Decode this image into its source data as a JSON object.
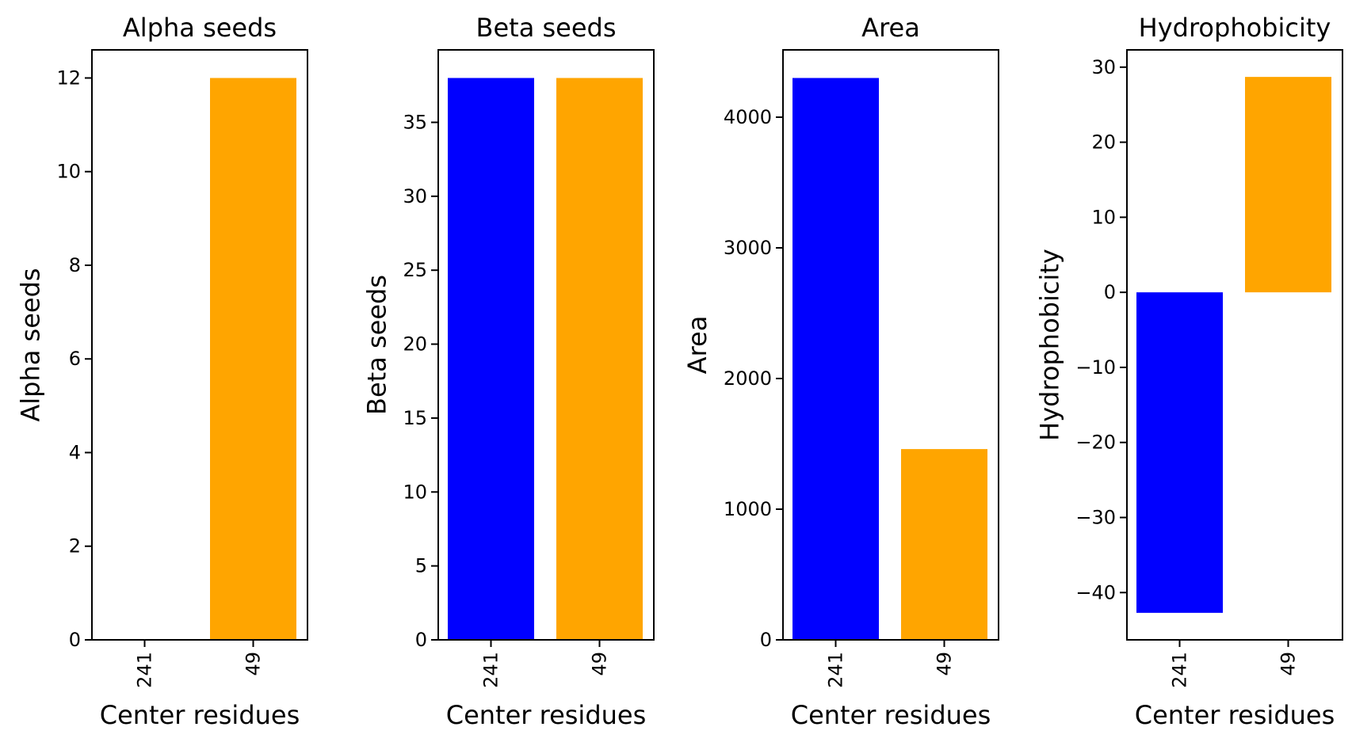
{
  "chart_data": [
    {
      "type": "bar",
      "title": "Alpha seeds",
      "xlabel": "Center residues",
      "ylabel": "Alpha seeds",
      "categories": [
        "241",
        "49"
      ],
      "values": [
        0,
        12
      ],
      "colors": [
        "#0000ff",
        "#ffa500"
      ],
      "ylim": [
        0,
        12.6
      ],
      "yticks": [
        0,
        2,
        4,
        6,
        8,
        10,
        12
      ],
      "ytick_labels": [
        "0",
        "2",
        "4",
        "6",
        "8",
        "10",
        "12"
      ]
    },
    {
      "type": "bar",
      "title": "Beta seeds",
      "xlabel": "Center residues",
      "ylabel": "Beta seeds",
      "categories": [
        "241",
        "49"
      ],
      "values": [
        38,
        38
      ],
      "colors": [
        "#0000ff",
        "#ffa500"
      ],
      "ylim": [
        0,
        39.9
      ],
      "yticks": [
        0,
        5,
        10,
        15,
        20,
        25,
        30,
        35
      ],
      "ytick_labels": [
        "0",
        "5",
        "10",
        "15",
        "20",
        "25",
        "30",
        "35"
      ]
    },
    {
      "type": "bar",
      "title": "Area",
      "xlabel": "Center residues",
      "ylabel": "Area",
      "categories": [
        "241",
        "49"
      ],
      "values": [
        4300,
        1460
      ],
      "colors": [
        "#0000ff",
        "#ffa500"
      ],
      "ylim": [
        0,
        4515
      ],
      "yticks": [
        0,
        1000,
        2000,
        3000,
        4000
      ],
      "ytick_labels": [
        "0",
        "1000",
        "2000",
        "3000",
        "4000"
      ]
    },
    {
      "type": "bar",
      "title": "Hydrophobicity",
      "xlabel": "Center residues",
      "ylabel": "Hydrophobicity",
      "categories": [
        "241",
        "49"
      ],
      "values": [
        -42.7,
        28.7
      ],
      "colors": [
        "#0000ff",
        "#ffa500"
      ],
      "ylim": [
        -46.3,
        32.3
      ],
      "yticks": [
        -40,
        -30,
        -20,
        -10,
        0,
        10,
        20,
        30
      ],
      "ytick_labels": [
        "−40",
        "−30",
        "−20",
        "−10",
        "0",
        "10",
        "20",
        "30"
      ]
    }
  ]
}
